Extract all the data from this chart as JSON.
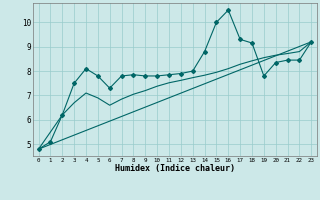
{
  "xlabel": "Humidex (Indice chaleur)",
  "xlim": [
    -0.5,
    23.5
  ],
  "ylim": [
    4.5,
    10.8
  ],
  "yticks": [
    5,
    6,
    7,
    8,
    9,
    10
  ],
  "xticks": [
    0,
    1,
    2,
    3,
    4,
    5,
    6,
    7,
    8,
    9,
    10,
    11,
    12,
    13,
    14,
    15,
    16,
    17,
    18,
    19,
    20,
    21,
    22,
    23
  ],
  "bg_color": "#cce8e8",
  "grid_color": "#99cccc",
  "line_color": "#006666",
  "series1_x": [
    0,
    1,
    2,
    3,
    4,
    5,
    6,
    7,
    8,
    9,
    10,
    11,
    12,
    13,
    14,
    15,
    16,
    17,
    18,
    19,
    20,
    21,
    22,
    23
  ],
  "series1_y": [
    4.8,
    5.1,
    6.2,
    7.5,
    8.1,
    7.8,
    7.3,
    7.8,
    7.85,
    7.8,
    7.8,
    7.85,
    7.9,
    8.0,
    8.8,
    10.0,
    10.5,
    9.3,
    9.15,
    7.8,
    8.35,
    8.45,
    8.45,
    9.2
  ],
  "series2_x": [
    0,
    2,
    3,
    4,
    5,
    6,
    7,
    8,
    9,
    10,
    11,
    12,
    13,
    14,
    15,
    16,
    17,
    18,
    19,
    20,
    21,
    22,
    23
  ],
  "series2_y": [
    4.8,
    6.2,
    6.7,
    7.1,
    6.9,
    6.6,
    6.85,
    7.05,
    7.2,
    7.38,
    7.52,
    7.62,
    7.73,
    7.83,
    7.95,
    8.1,
    8.28,
    8.42,
    8.55,
    8.65,
    8.72,
    8.8,
    9.2
  ],
  "series3_x": [
    0,
    23
  ],
  "series3_y": [
    4.8,
    9.2
  ],
  "marker": "D",
  "markersize": 2.0,
  "linewidth": 0.8
}
